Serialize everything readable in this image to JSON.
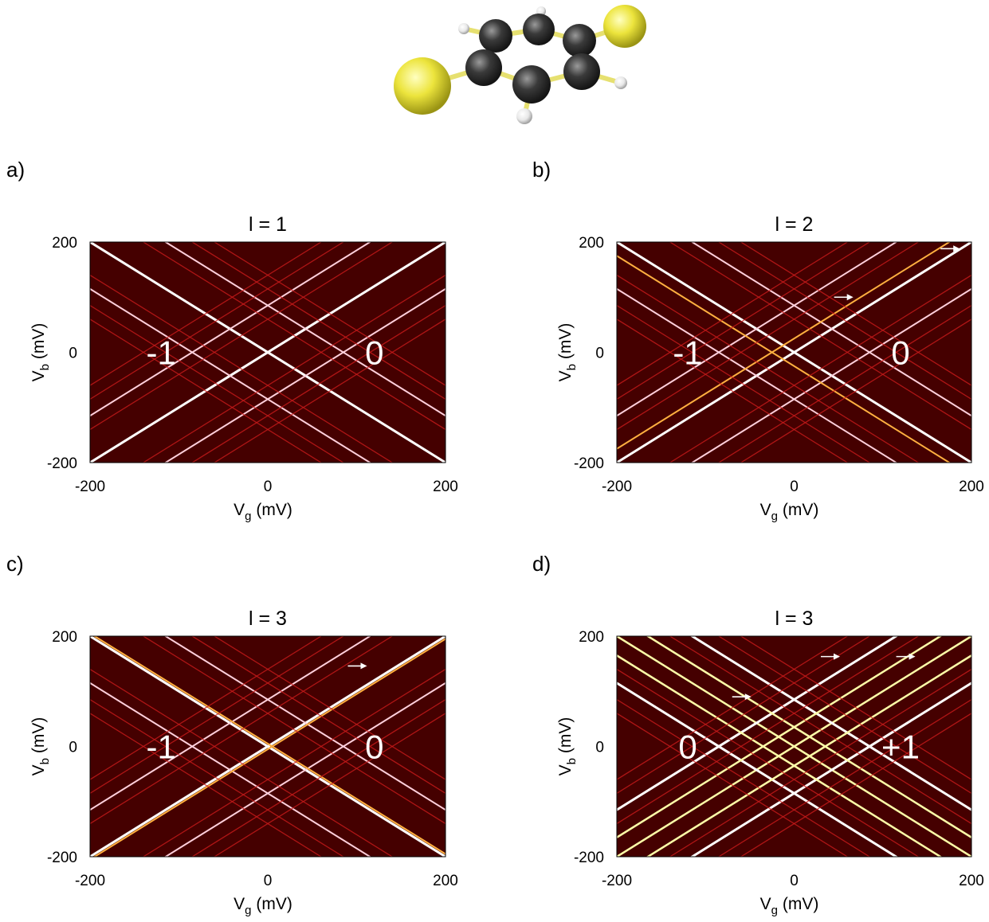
{
  "chart_data": [
    {
      "type": "heatmap",
      "panel_label": "a)",
      "title": "l = 1",
      "xlabel": "V",
      "xlabel_sub": "g",
      "xunit": "(mV)",
      "ylabel": "V",
      "ylabel_sub": "b",
      "yunit": "(mV)",
      "xlim": [
        -200,
        200
      ],
      "ylim": [
        -200,
        200
      ],
      "xticks": [
        "-200",
        "0",
        "200"
      ],
      "yticks": [
        "200",
        "0",
        "-200"
      ],
      "regions": [
        {
          "label": "-1",
          "vg": -120,
          "vb": 0
        },
        {
          "label": "0",
          "vg": 120,
          "vb": 0
        }
      ],
      "lines": [
        {
          "vg0": 0,
          "intensity": "white"
        },
        {
          "vg0": -85,
          "intensity": "pink"
        },
        {
          "vg0": 85,
          "intensity": "pink"
        },
        {
          "vg0": -115,
          "intensity": "faint"
        },
        {
          "vg0": 115,
          "intensity": "faint"
        },
        {
          "vg0": -60,
          "intensity": "faint"
        },
        {
          "vg0": 60,
          "intensity": "faint"
        },
        {
          "vg0": -140,
          "intensity": "faint"
        },
        {
          "vg0": 140,
          "intensity": "faint"
        }
      ],
      "arrows": [],
      "colors": {
        "background": "#450000",
        "white": "#ffffff",
        "pink": "#ffd0dc",
        "orange": "#ffb040",
        "yellow": "#ffffa8",
        "faint": "#c81a1a"
      }
    },
    {
      "type": "heatmap",
      "panel_label": "b)",
      "title": "l = 2",
      "xlabel": "V",
      "xlabel_sub": "g",
      "xunit": "(mV)",
      "ylabel": "V",
      "ylabel_sub": "b",
      "yunit": "(mV)",
      "xlim": [
        -200,
        200
      ],
      "ylim": [
        -200,
        200
      ],
      "xticks": [
        "-200",
        "0",
        "200"
      ],
      "yticks": [
        "200",
        "0",
        "-200"
      ],
      "regions": [
        {
          "label": "-1",
          "vg": -120,
          "vb": 0
        },
        {
          "label": "0",
          "vg": 120,
          "vb": 0
        }
      ],
      "lines": [
        {
          "vg0": 0,
          "intensity": "white"
        },
        {
          "vg0": -85,
          "intensity": "pink"
        },
        {
          "vg0": 85,
          "intensity": "pink"
        },
        {
          "vg0": -25,
          "intensity": "orange",
          "slope": -1
        },
        {
          "vg0": -25,
          "intensity": "orange",
          "slope": 1
        },
        {
          "vg0": -115,
          "intensity": "faint"
        },
        {
          "vg0": 115,
          "intensity": "faint"
        },
        {
          "vg0": -60,
          "intensity": "faint"
        },
        {
          "vg0": 60,
          "intensity": "faint"
        },
        {
          "vg0": -140,
          "intensity": "faint"
        },
        {
          "vg0": 140,
          "intensity": "faint"
        }
      ],
      "arrows": [
        {
          "vg": 55,
          "vb": 100
        },
        {
          "vg": 175,
          "vb": 188
        }
      ],
      "colors": {
        "background": "#450000",
        "white": "#ffffff",
        "pink": "#ffd0dc",
        "orange": "#ffb040",
        "yellow": "#ffffa8",
        "faint": "#c81a1a"
      }
    },
    {
      "type": "heatmap",
      "panel_label": "c)",
      "title": "l = 3",
      "xlabel": "V",
      "xlabel_sub": "g",
      "xunit": "(mV)",
      "ylabel": "V",
      "ylabel_sub": "b",
      "yunit": "(mV)",
      "xlim": [
        -200,
        200
      ],
      "ylim": [
        -200,
        200
      ],
      "xticks": [
        "-200",
        "0",
        "200"
      ],
      "yticks": [
        "200",
        "0",
        "-200"
      ],
      "regions": [
        {
          "label": "-1",
          "vg": -120,
          "vb": 0
        },
        {
          "label": "0",
          "vg": 120,
          "vb": 0
        }
      ],
      "lines": [
        {
          "vg0": 0,
          "intensity": "white"
        },
        {
          "vg0": -85,
          "intensity": "pink"
        },
        {
          "vg0": 85,
          "intensity": "pink"
        },
        {
          "vg0": 5,
          "intensity": "orange",
          "slope": -1
        },
        {
          "vg0": 5,
          "intensity": "orange",
          "slope": 1
        },
        {
          "vg0": -115,
          "intensity": "faint"
        },
        {
          "vg0": 115,
          "intensity": "faint"
        },
        {
          "vg0": -60,
          "intensity": "faint"
        },
        {
          "vg0": 60,
          "intensity": "faint"
        },
        {
          "vg0": -140,
          "intensity": "faint"
        },
        {
          "vg0": 140,
          "intensity": "faint"
        }
      ],
      "arrows": [
        {
          "vg": 100,
          "vb": 146
        }
      ],
      "colors": {
        "background": "#450000",
        "white": "#ffffff",
        "pink": "#ffd0dc",
        "orange": "#ffb040",
        "yellow": "#ffffa8",
        "faint": "#c81a1a"
      }
    },
    {
      "type": "heatmap",
      "panel_label": "d)",
      "title": "l = 3",
      "xlabel": "V",
      "xlabel_sub": "g",
      "xunit": "(mV)",
      "ylabel": "V",
      "ylabel_sub": "b",
      "yunit": "(mV)",
      "xlim": [
        -200,
        200
      ],
      "ylim": [
        -200,
        200
      ],
      "xticks": [
        "-200",
        "0",
        "200"
      ],
      "yticks": [
        "200",
        "0",
        "-200"
      ],
      "regions": [
        {
          "label": "0",
          "vg": -120,
          "vb": 0
        },
        {
          "label": "+1",
          "vg": 120,
          "vb": 0
        }
      ],
      "lines": [
        {
          "vg0": 0,
          "intensity": "yellow"
        },
        {
          "vg0": -85,
          "intensity": "white"
        },
        {
          "vg0": 85,
          "intensity": "white"
        },
        {
          "vg0": -35,
          "intensity": "yellow"
        },
        {
          "vg0": 35,
          "intensity": "yellow"
        },
        {
          "vg0": -115,
          "intensity": "faint"
        },
        {
          "vg0": 115,
          "intensity": "faint"
        },
        {
          "vg0": -60,
          "intensity": "faint"
        },
        {
          "vg0": 60,
          "intensity": "faint"
        },
        {
          "vg0": -140,
          "intensity": "faint"
        },
        {
          "vg0": 140,
          "intensity": "faint"
        }
      ],
      "arrows": [
        {
          "vg": -60,
          "vb": 90
        },
        {
          "vg": 40,
          "vb": 163
        },
        {
          "vg": 125,
          "vb": 163
        }
      ],
      "colors": {
        "background": "#450000",
        "white": "#ffffff",
        "pink": "#ffd0dc",
        "orange": "#ffb040",
        "yellow": "#ffffa8",
        "faint": "#c81a1a"
      }
    }
  ],
  "molecule": {
    "icon": "benzene-dithiol-molecule-icon",
    "colors": {
      "carbon": "#2a2a2a",
      "sulfur": "#e8e030",
      "hydrogen": "#f4f4f4",
      "bond": "#e6e070"
    }
  }
}
